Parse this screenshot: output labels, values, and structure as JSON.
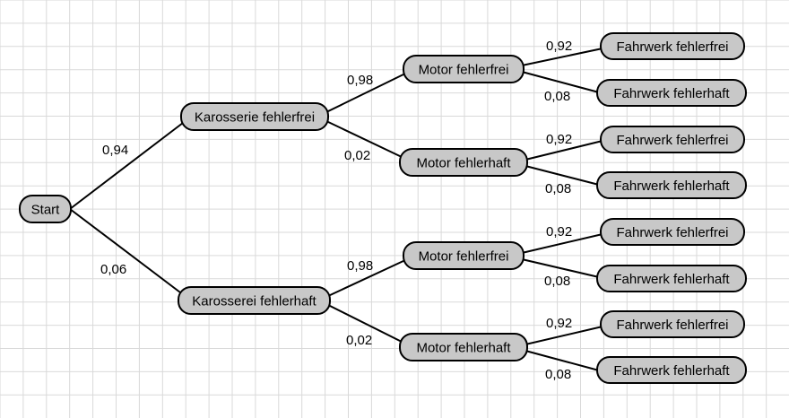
{
  "colors": {
    "node_fill": "#c8c8c8",
    "grid": "#d9d9d9",
    "background": "#ffffff",
    "stroke": "#000000"
  },
  "tree": {
    "root": {
      "label": "Start"
    },
    "level1": [
      {
        "label": "Karosserie fehlerfrei",
        "prob": "0,94"
      },
      {
        "label": "Karosserei fehlerhaft",
        "prob": "0,06"
      }
    ],
    "level2": [
      {
        "label": "Motor fehlerfrei",
        "prob": "0,98"
      },
      {
        "label": "Motor fehlerhaft",
        "prob": "0,02"
      },
      {
        "label": "Motor fehlerfrei",
        "prob": "0,98"
      },
      {
        "label": "Motor fehlerhaft",
        "prob": "0,02"
      }
    ],
    "level3": [
      {
        "label": "Fahrwerk fehlerfrei",
        "prob": "0,92"
      },
      {
        "label": "Fahrwerk fehlerhaft",
        "prob": "0,08"
      },
      {
        "label": "Fahrwerk fehlerfrei",
        "prob": "0,92"
      },
      {
        "label": "Fahrwerk fehlerhaft",
        "prob": "0,08"
      },
      {
        "label": "Fahrwerk fehlerfrei",
        "prob": "0,92"
      },
      {
        "label": "Fahrwerk fehlerhaft",
        "prob": "0,08"
      },
      {
        "label": "Fahrwerk fehlerfrei",
        "prob": "0,92"
      },
      {
        "label": "Fahrwerk fehlerhaft",
        "prob": "0,08"
      }
    ]
  }
}
